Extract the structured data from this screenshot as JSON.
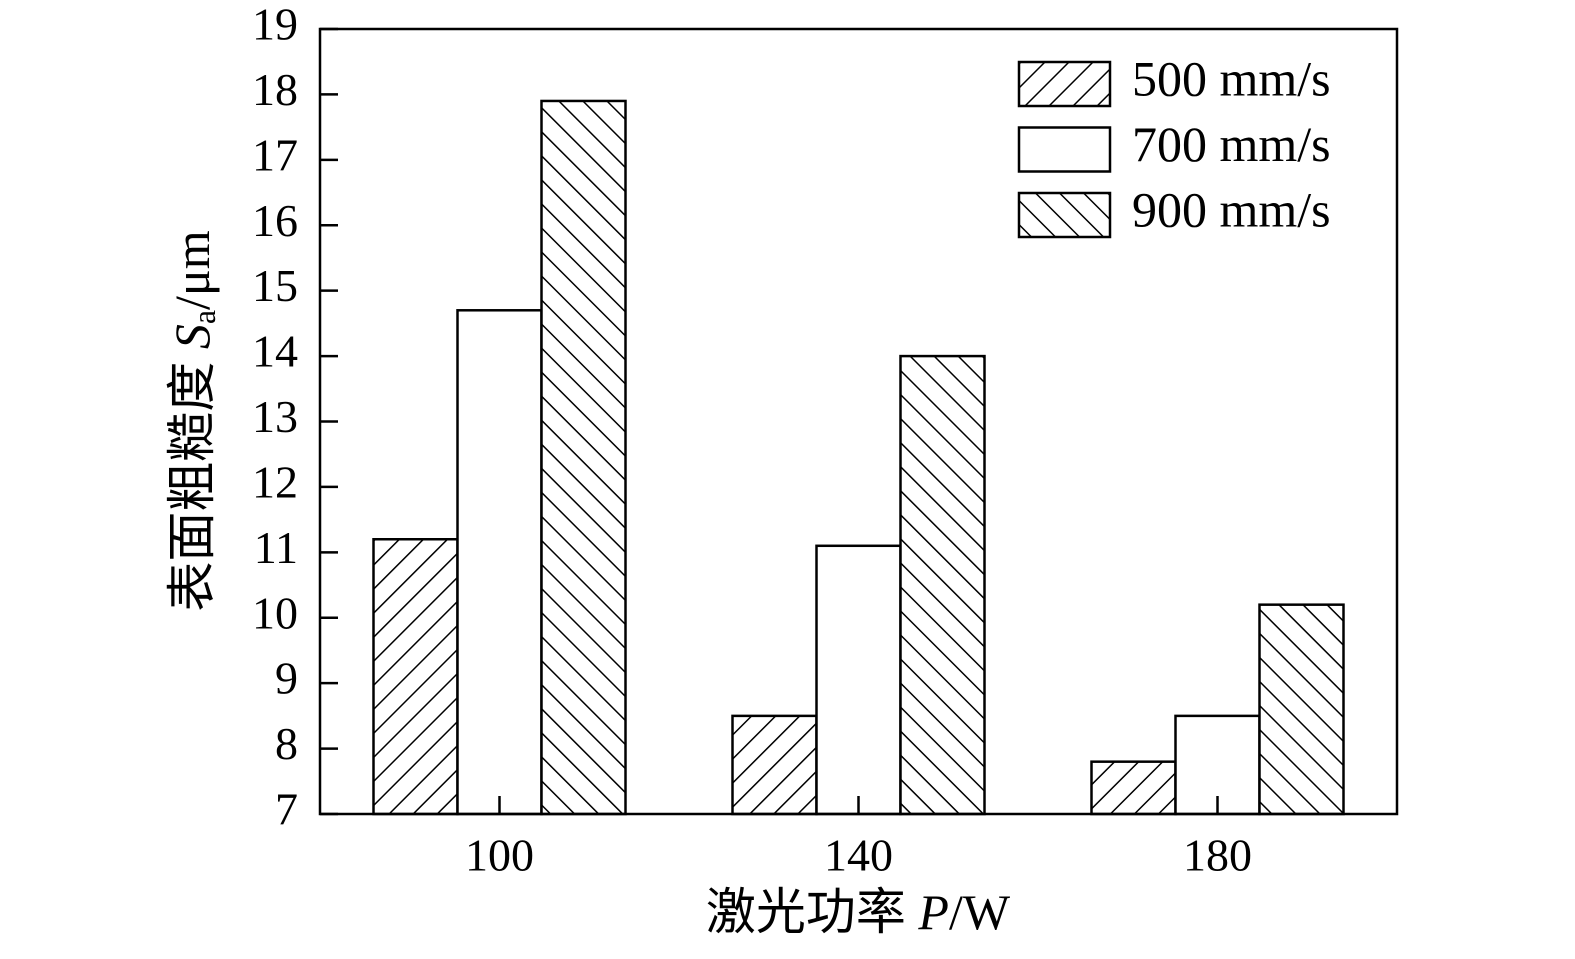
{
  "chart_data": {
    "type": "bar",
    "categories": [
      "100",
      "140",
      "180"
    ],
    "series": [
      {
        "name": "500 mm/s",
        "color": "#000000",
        "hatch": "forward",
        "values": [
          11.2,
          8.5,
          7.8
        ]
      },
      {
        "name": "700 mm/s",
        "color": "#000000",
        "hatch": "none",
        "values": [
          14.7,
          11.1,
          8.5
        ]
      },
      {
        "name": "900 mm/s",
        "color": "#000000",
        "hatch": "backward",
        "values": [
          17.9,
          14.0,
          10.2
        ]
      }
    ],
    "ylim": [
      7,
      19
    ],
    "yticks": [
      7,
      8,
      9,
      10,
      11,
      12,
      13,
      14,
      15,
      16,
      17,
      18,
      19
    ],
    "x_label": [
      "激光功率 ",
      "P",
      "/W"
    ],
    "y_label": [
      "表面粗糙度 ",
      "S",
      "a",
      "/μm"
    ],
    "legend": "top-right",
    "grid": false
  }
}
